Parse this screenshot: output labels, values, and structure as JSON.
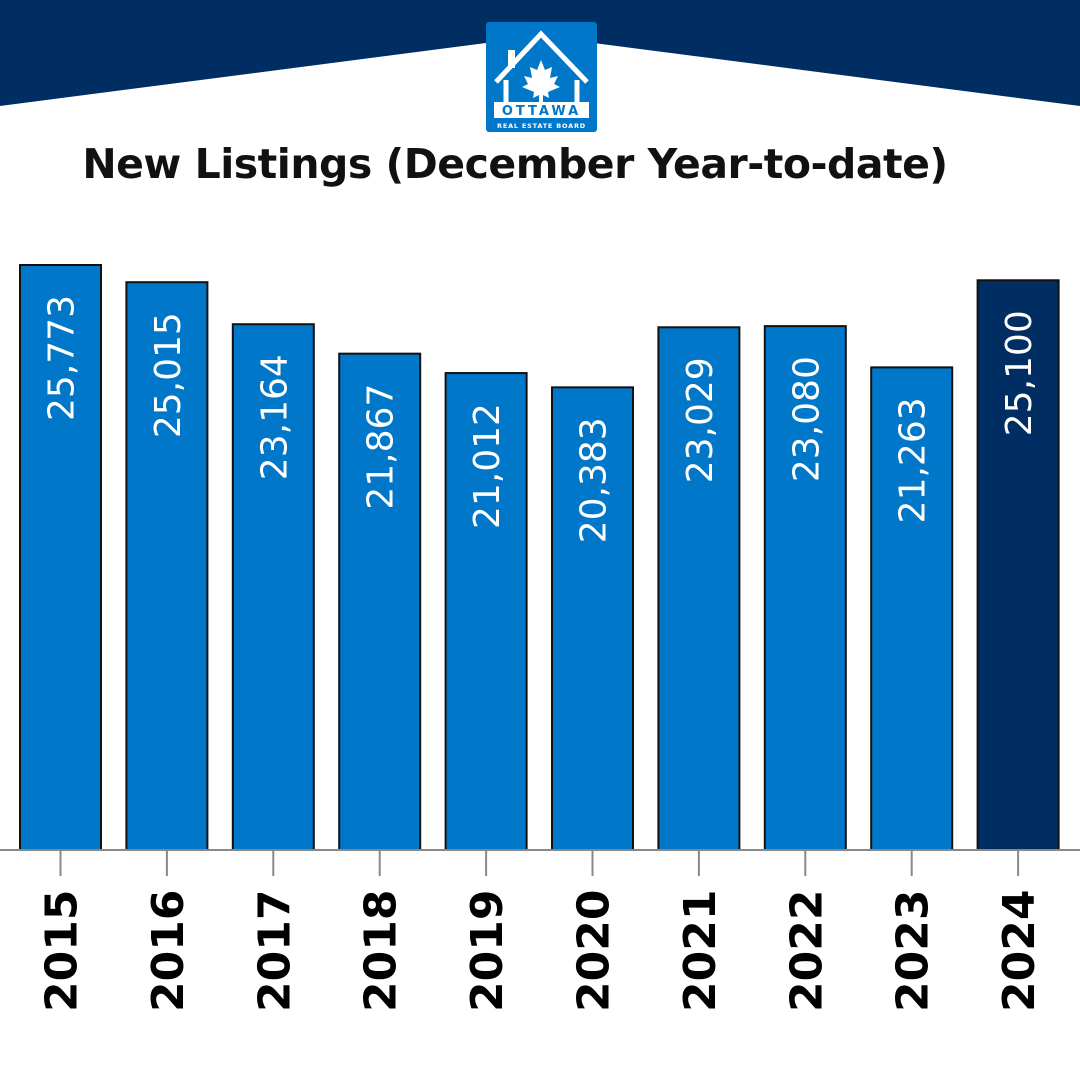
{
  "logo": {
    "line1": "OTTAWA",
    "line2": "REAL ESTATE BOARD",
    "icon": "house-maple-leaf-icon"
  },
  "colors": {
    "bar": "#0077c8",
    "highlight": "#002d62",
    "header": "#002d62",
    "label": "#ffffff"
  },
  "chart_data": {
    "type": "bar",
    "title": "New Listings (December Year-to-date)",
    "categories": [
      "2015",
      "2016",
      "2017",
      "2018",
      "2019",
      "2020",
      "2021",
      "2022",
      "2023",
      "2024"
    ],
    "values": [
      25773,
      25015,
      23164,
      21867,
      21012,
      20383,
      23029,
      23080,
      21263,
      25100
    ],
    "data_labels": [
      "25,773",
      "25,015",
      "23,164",
      "21,867",
      "21,012",
      "20,383",
      "23,029",
      "23,080",
      "21,263",
      "25,100"
    ],
    "highlight_category": "2024",
    "xlabel": "",
    "ylabel": "",
    "ylim": [
      0,
      26000
    ],
    "grid": false
  }
}
